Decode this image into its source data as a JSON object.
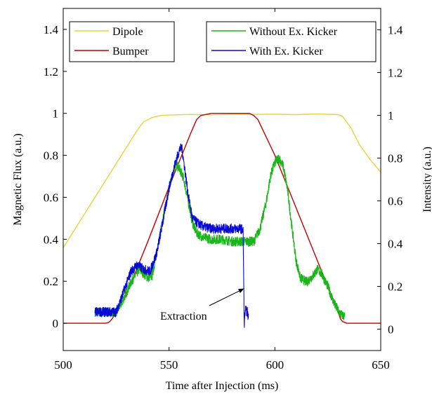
{
  "chart_data": {
    "type": "line",
    "xlabel": "Time after Injection (ms)",
    "ylabel_left": "Magnetic Flux (a.u.)",
    "ylabel_right": "Intensity (a.u.)",
    "xlim": [
      500,
      650
    ],
    "ylim_left": [
      -0.13,
      1.5
    ],
    "ylim_right": [
      -0.1,
      1.5
    ],
    "x_ticks": [
      500,
      550,
      600,
      650
    ],
    "y_ticks_left": [
      0,
      0.2,
      0.4,
      0.6,
      0.8,
      1,
      1.2,
      1.4
    ],
    "y_ticks_right": [
      0,
      0.2,
      0.4,
      0.6,
      0.8,
      1,
      1.2,
      1.4
    ],
    "legend_left_placement": "top-left",
    "legend_right_placement": "top-right",
    "grid": false,
    "annotation": {
      "text": "Extraction",
      "x": 585.5,
      "y": 0.19,
      "axis": "right"
    },
    "series": [
      {
        "name": "Dipole",
        "axis": "left",
        "color": "#e8d33a",
        "x": [
          500,
          505,
          510,
          515,
          520,
          525,
          530,
          535,
          538,
          542,
          546,
          550,
          560,
          570,
          580,
          590,
          600,
          610,
          620,
          630,
          632,
          636,
          640,
          645,
          650
        ],
        "y": [
          0.36,
          0.44,
          0.52,
          0.6,
          0.68,
          0.76,
          0.84,
          0.92,
          0.96,
          0.98,
          0.99,
          0.992,
          0.995,
          0.993,
          0.995,
          0.995,
          0.996,
          0.994,
          0.997,
          0.994,
          0.985,
          0.93,
          0.85,
          0.78,
          0.72
        ]
      },
      {
        "name": "Bumper",
        "axis": "left",
        "color": "#c00000",
        "x": [
          500,
          520,
          521,
          522,
          523,
          525,
          530,
          540,
          550,
          560,
          563,
          565,
          570,
          580,
          588,
          590,
          592,
          600,
          610,
          620,
          630,
          631,
          632,
          634,
          650
        ],
        "y": [
          0,
          0,
          0.002,
          0.008,
          0.02,
          0.05,
          0.14,
          0.39,
          0.65,
          0.9,
          0.97,
          0.99,
          1,
          1,
          1,
          0.99,
          0.97,
          0.8,
          0.55,
          0.3,
          0.05,
          0.02,
          0.008,
          0,
          0
        ]
      },
      {
        "name": "Without Ex. Kicker",
        "axis": "right",
        "color": "#1ab51a",
        "x": [
          515,
          520,
          525,
          528,
          532,
          536,
          540,
          542,
          545,
          548,
          551,
          553,
          555,
          557,
          559,
          561,
          563,
          566,
          570,
          575,
          580,
          585,
          590,
          593,
          596,
          598,
          600,
          602,
          604,
          606,
          608,
          610,
          612,
          615,
          618,
          620,
          622,
          625,
          628,
          631,
          633
        ],
        "y": [
          0.08,
          0.08,
          0.08,
          0.13,
          0.22,
          0.28,
          0.24,
          0.25,
          0.4,
          0.56,
          0.7,
          0.77,
          0.75,
          0.7,
          0.6,
          0.5,
          0.45,
          0.43,
          0.42,
          0.42,
          0.41,
          0.41,
          0.41,
          0.47,
          0.6,
          0.72,
          0.78,
          0.8,
          0.76,
          0.65,
          0.48,
          0.32,
          0.24,
          0.22,
          0.25,
          0.28,
          0.26,
          0.2,
          0.12,
          0.07,
          0.06
        ]
      },
      {
        "name": "With Ex. Kicker",
        "axis": "right",
        "color": "#0a0ad2",
        "x": [
          515,
          520,
          525,
          528,
          532,
          535,
          538,
          541,
          544,
          547,
          550,
          553,
          555,
          556,
          557,
          559,
          561,
          563,
          566,
          570,
          575,
          580,
          584,
          585,
          585.5,
          586,
          587,
          587.5
        ],
        "y": [
          0.08,
          0.08,
          0.08,
          0.16,
          0.27,
          0.3,
          0.28,
          0.27,
          0.35,
          0.5,
          0.66,
          0.78,
          0.84,
          0.85,
          0.78,
          0.63,
          0.52,
          0.5,
          0.48,
          0.47,
          0.47,
          0.47,
          0.47,
          0.46,
          0.02,
          0.09,
          0.08,
          0.05
        ]
      }
    ]
  }
}
